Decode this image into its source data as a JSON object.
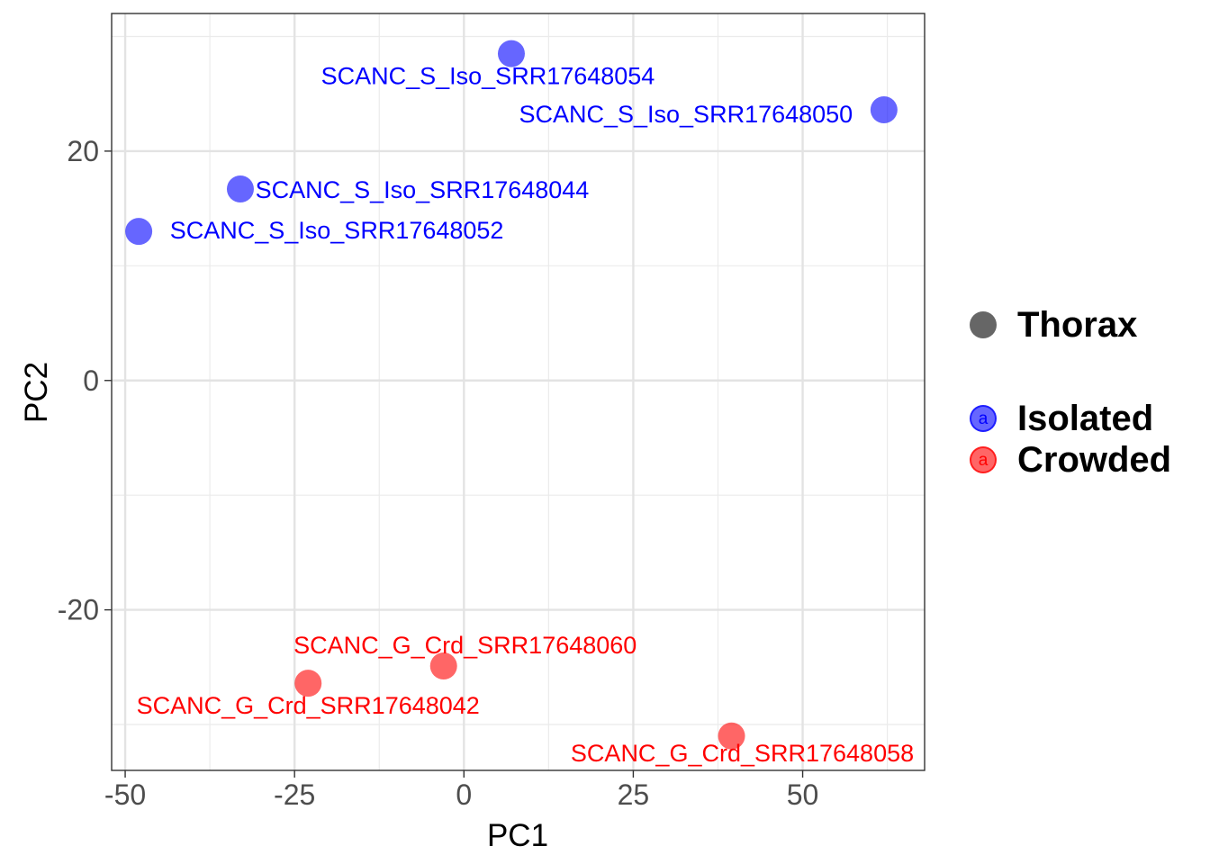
{
  "chart_data": {
    "type": "scatter",
    "xlabel": "PC1",
    "ylabel": "PC2",
    "xlim": [
      -52,
      68
    ],
    "ylim": [
      -34,
      32
    ],
    "x_ticks": [
      -50,
      -25,
      0,
      25,
      50
    ],
    "y_ticks": [
      -20,
      0,
      20
    ],
    "x_tick_labels": [
      "-50",
      "-25",
      "0",
      "25",
      "50"
    ],
    "y_tick_labels": [
      "-20",
      "0",
      "20"
    ],
    "grid": true,
    "legend_position": "right",
    "series": [
      {
        "name": "Isolated",
        "color": "#0000ff",
        "points": [
          {
            "x": 7,
            "y": 28.5,
            "label": "SCANC_S_Iso_SRR17648054"
          },
          {
            "x": 62,
            "y": 23.6,
            "label": "SCANC_S_Iso_SRR17648050"
          },
          {
            "x": -33,
            "y": 16.7,
            "label": "SCANC_S_Iso_SRR17648044"
          },
          {
            "x": -48,
            "y": 13.0,
            "label": "SCANC_S_Iso_SRR17648052"
          }
        ]
      },
      {
        "name": "Crowded",
        "color": "#ff0000",
        "points": [
          {
            "x": -3,
            "y": -24.9,
            "label": "SCANC_G_Crd_SRR17648060"
          },
          {
            "x": -23,
            "y": -26.4,
            "label": "SCANC_G_Crd_SRR17648042"
          },
          {
            "x": 39.5,
            "y": -31.0,
            "label": "SCANC_G_Crd_SRR17648058"
          }
        ]
      }
    ]
  },
  "legend": {
    "shape_title": "Thorax",
    "shape_color": "#666666",
    "key_glyph": "a",
    "items": [
      {
        "label": "Isolated",
        "color": "#0000ff"
      },
      {
        "label": "Crowded",
        "color": "#ff0000"
      }
    ]
  }
}
